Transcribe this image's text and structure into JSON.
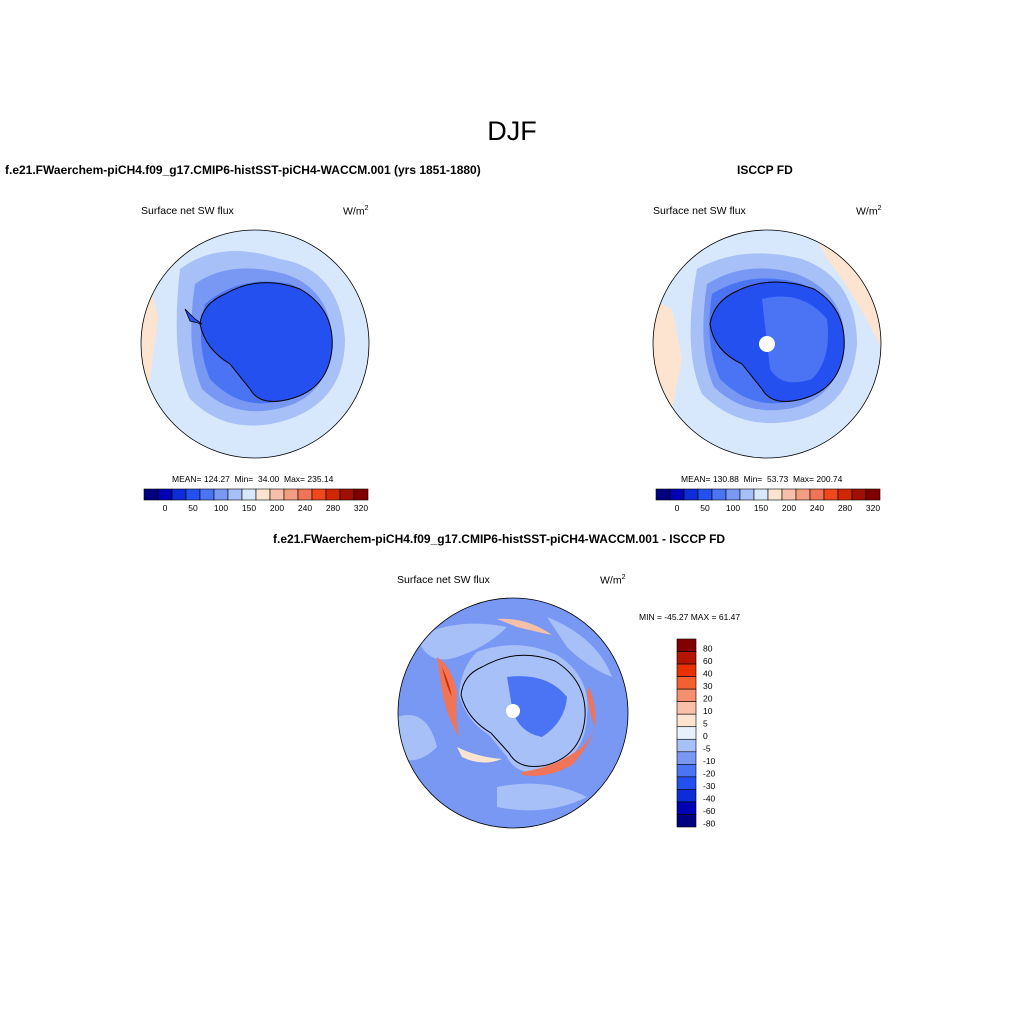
{
  "figure": {
    "season": "DJF"
  },
  "panels": [
    {
      "id": "model",
      "case_title": "f.e21.FWaerchem-piCH4.f09_g17.CMIP6-histSST-piCH4-WACCM.001 (yrs 1851-1880)",
      "variable": "Surface net SW flux",
      "units": "W/m",
      "units_exp": "2",
      "stats": {
        "mean": "124.27",
        "min": "34.00",
        "max": "235.14"
      },
      "colorbar": {
        "colors": [
          "#000080",
          "#0000b4",
          "#0c2cd8",
          "#2550f0",
          "#4a74f4",
          "#7898f4",
          "#a8c0f8",
          "#d8e8fc",
          "#fce4d0",
          "#f8c0a8",
          "#f49c80",
          "#f07458",
          "#f04818",
          "#d02800",
          "#a01000",
          "#800000"
        ],
        "labels": [
          "0",
          "50",
          "100",
          "150",
          "200",
          "240",
          "280",
          "320"
        ]
      }
    },
    {
      "id": "obs",
      "case_title": "ISCCP FD",
      "variable": "Surface net SW flux",
      "units": "W/m",
      "units_exp": "2",
      "stats": {
        "mean": "130.88",
        "min": "53.73",
        "max": "200.74"
      },
      "colorbar": {
        "colors": [
          "#000080",
          "#0000b4",
          "#0c2cd8",
          "#2550f0",
          "#4a74f4",
          "#7898f4",
          "#a8c0f8",
          "#d8e8fc",
          "#fce4d0",
          "#f8c0a8",
          "#f49c80",
          "#f07458",
          "#f04818",
          "#d02800",
          "#a01000",
          "#800000"
        ],
        "labels": [
          "0",
          "50",
          "100",
          "150",
          "200",
          "240",
          "280",
          "320"
        ]
      }
    }
  ],
  "diff": {
    "case_title": "f.e21.FWaerchem-piCH4.f09_g17.CMIP6-histSST-piCH4-WACCM.001 - ISCCP FD",
    "variable": "Surface net SW flux",
    "units": "W/m",
    "units_exp": "2",
    "minmax": "MIN = -45.27 MAX =  61.47",
    "colorbar": {
      "colors": [
        "#800000",
        "#b41400",
        "#e83000",
        "#f46030",
        "#f49070",
        "#f8c0a8",
        "#fce4d0",
        "#e8f0fc",
        "#a8c0f8",
        "#7898f4",
        "#4a74f4",
        "#2550f0",
        "#0c2cd8",
        "#0000b4",
        "#000080"
      ],
      "labels": [
        "80",
        "60",
        "40",
        "30",
        "20",
        "10",
        "5",
        "0",
        "-5",
        "-10",
        "-20",
        "-30",
        "-40",
        "-60",
        "-80"
      ]
    }
  }
}
